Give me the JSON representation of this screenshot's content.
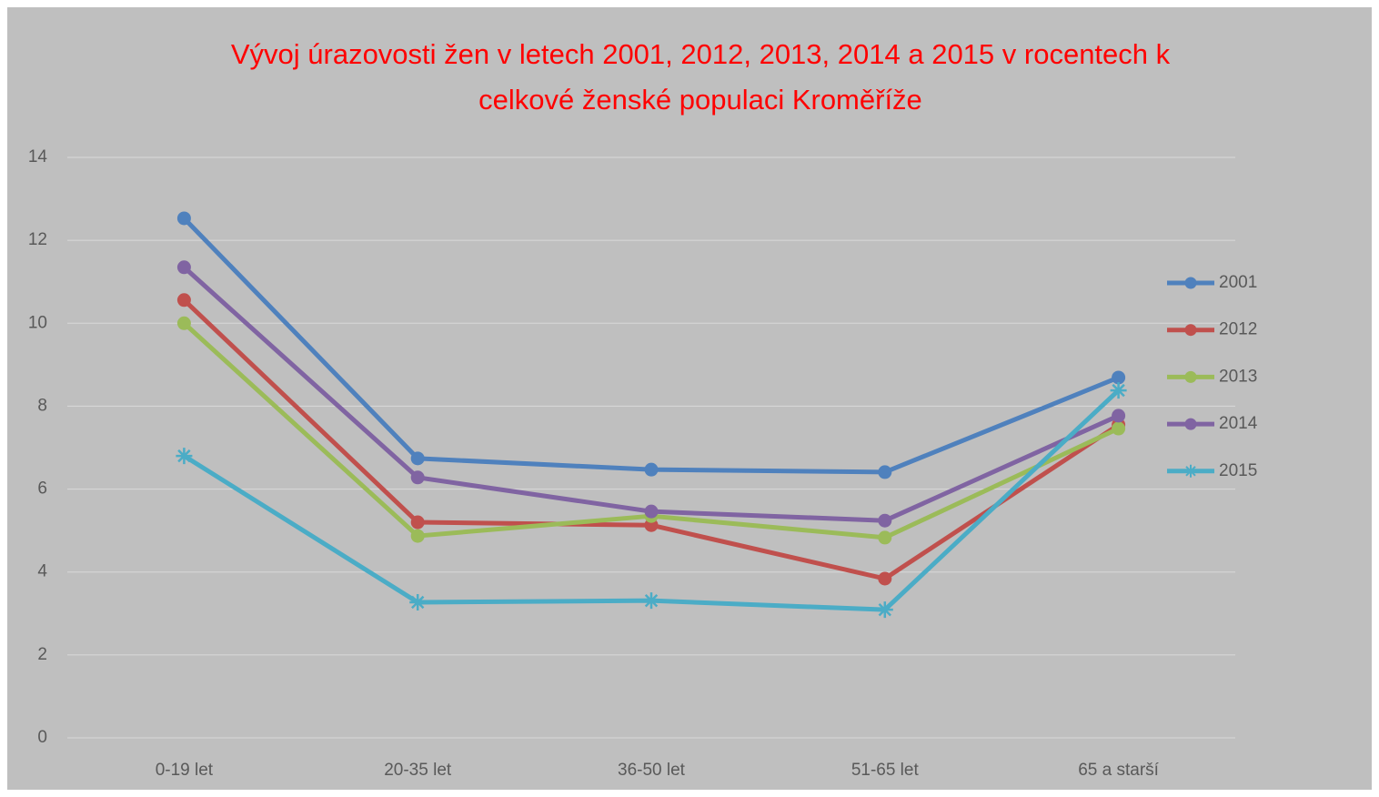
{
  "chart_data": {
    "type": "line",
    "title": [
      "Vývoj úrazovosti  žen v letech 2001, 2012, 2013, 2014  a 2015 v rocentech k",
      "celkové ženské populaci Kroměříže"
    ],
    "categories": [
      "0-19 let",
      "20-35 let",
      "36-50 let",
      "51-65 let",
      "65 a starší"
    ],
    "series": [
      {
        "name": "2001",
        "color": "#4f81bd",
        "marker": "circle",
        "values": [
          12.53,
          6.74,
          6.47,
          6.41,
          8.69
        ]
      },
      {
        "name": "2012",
        "color": "#c0504d",
        "marker": "circle",
        "values": [
          10.56,
          5.2,
          5.13,
          3.84,
          7.55
        ]
      },
      {
        "name": "2013",
        "color": "#9bbb59",
        "marker": "circle",
        "values": [
          10.0,
          4.87,
          5.35,
          4.83,
          7.46
        ]
      },
      {
        "name": "2014",
        "color": "#8064a2",
        "marker": "circle",
        "values": [
          11.35,
          6.28,
          5.46,
          5.24,
          7.77
        ]
      },
      {
        "name": "2015",
        "color": "#4bacc6",
        "marker": "star",
        "values": [
          6.8,
          3.27,
          3.31,
          3.09,
          8.38
        ]
      }
    ],
    "ylim": [
      0,
      14
    ],
    "yticks": [
      0,
      2,
      4,
      6,
      8,
      10,
      12,
      14
    ],
    "grid": true,
    "legend": "right"
  }
}
